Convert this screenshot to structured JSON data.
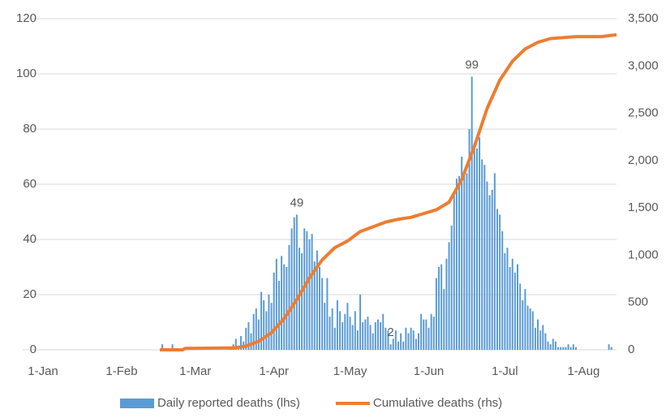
{
  "chart_data": {
    "type": "bar_line",
    "xlim": [
      -8,
      226
    ],
    "xticks": [
      {
        "value": 0,
        "label": "1-Jan"
      },
      {
        "value": 31,
        "label": "1-Feb"
      },
      {
        "value": 60,
        "label": "1-Mar"
      },
      {
        "value": 91,
        "label": "1-Apr"
      },
      {
        "value": 121,
        "label": "1-May"
      },
      {
        "value": 152,
        "label": "1-Jun"
      },
      {
        "value": 182,
        "label": "1-Jul"
      },
      {
        "value": 213,
        "label": "1-Aug"
      }
    ],
    "ylim": [
      0,
      120
    ],
    "yticks": [
      0,
      20,
      40,
      60,
      80,
      100,
      120
    ],
    "y2lim": [
      0,
      3500
    ],
    "y2ticks": [
      0,
      500,
      {
        "value": 1000,
        "label": "1,000"
      },
      {
        "value": 1500,
        "label": "1,500"
      },
      {
        "value": 2000,
        "label": "2,000"
      },
      {
        "value": 2500,
        "label": "2,500"
      },
      {
        "value": 3000,
        "label": "3,000"
      },
      {
        "value": 3500,
        "label": "3,500"
      }
    ],
    "grid": true,
    "legend": "bottom",
    "series": [
      {
        "name": "Daily reported deaths (lhs)",
        "color": "#5b9bd5",
        "kind": "bar",
        "x": [
          46,
          47,
          48,
          49,
          50,
          51,
          52,
          53,
          54,
          55,
          56,
          57,
          58,
          59,
          60,
          61,
          62,
          63,
          64,
          65,
          66,
          67,
          68,
          69,
          70,
          71,
          72,
          73,
          74,
          75,
          76,
          77,
          78,
          79,
          80,
          81,
          82,
          83,
          84,
          85,
          86,
          87,
          88,
          89,
          90,
          91,
          92,
          93,
          94,
          95,
          96,
          97,
          98,
          99,
          100,
          101,
          102,
          103,
          104,
          105,
          106,
          107,
          108,
          109,
          110,
          111,
          112,
          113,
          114,
          115,
          116,
          117,
          118,
          119,
          120,
          121,
          122,
          123,
          124,
          125,
          126,
          127,
          128,
          129,
          130,
          131,
          132,
          133,
          134,
          135,
          136,
          137,
          138,
          139,
          140,
          141,
          142,
          143,
          144,
          145,
          146,
          147,
          148,
          149,
          150,
          151,
          152,
          153,
          154,
          155,
          156,
          157,
          158,
          159,
          160,
          161,
          162,
          163,
          164,
          165,
          166,
          167,
          168,
          169,
          170,
          171,
          172,
          173,
          174,
          175,
          176,
          177,
          178,
          179,
          180,
          181,
          182,
          183,
          184,
          185,
          186,
          187,
          188,
          189,
          190,
          191,
          192,
          193,
          194,
          195,
          196,
          197,
          198,
          199,
          200,
          201,
          202,
          203,
          204,
          205,
          206,
          207,
          208,
          209,
          210,
          211,
          212,
          213,
          214,
          215,
          216,
          217,
          218,
          219,
          220,
          221,
          222,
          223,
          224,
          225,
          226
        ],
        "values": [
          0,
          2,
          0,
          0,
          0,
          2,
          0,
          0,
          0,
          0,
          0,
          0,
          1,
          0,
          0,
          1,
          0,
          0,
          0,
          0,
          0,
          0,
          0,
          0,
          0,
          0,
          0,
          1,
          1,
          2,
          4,
          1,
          5,
          3,
          8,
          10,
          6,
          13,
          15,
          11,
          21,
          18,
          14,
          20,
          17,
          28,
          33,
          25,
          34,
          31,
          30,
          38,
          44,
          48,
          49,
          37,
          35,
          44,
          43,
          40,
          42,
          32,
          36,
          30,
          26,
          17,
          26,
          12,
          15,
          8,
          18,
          14,
          10,
          13,
          17,
          12,
          9,
          14,
          7,
          20,
          10,
          11,
          12,
          9,
          6,
          10,
          11,
          10,
          13,
          8,
          7,
          2,
          4,
          7,
          3,
          6,
          3,
          8,
          6,
          8,
          7,
          4,
          6,
          13,
          11,
          11,
          8,
          13,
          12,
          26,
          30,
          31,
          22,
          33,
          39,
          45,
          57,
          62,
          63,
          70,
          65,
          64,
          80,
          99,
          75,
          73,
          77,
          69,
          67,
          61,
          56,
          58,
          64,
          51,
          49,
          43,
          35,
          37,
          30,
          33,
          28,
          31,
          24,
          18,
          22,
          16,
          15,
          14,
          8,
          11,
          7,
          9,
          6,
          3,
          2,
          4,
          3,
          1,
          1,
          1,
          1,
          2,
          1,
          2,
          1,
          0,
          0,
          0,
          0,
          0,
          0,
          0,
          0,
          0,
          0,
          0,
          0,
          2,
          1,
          0,
          0
        ]
      },
      {
        "name": "Cumulative deaths (rhs)",
        "color": "#ed7d31",
        "kind": "line",
        "axis": "y2",
        "x": [
          46,
          55,
          56,
          75,
          80,
          85,
          90,
          95,
          100,
          105,
          110,
          115,
          120,
          125,
          130,
          135,
          140,
          145,
          150,
          155,
          160,
          165,
          170,
          175,
          180,
          185,
          190,
          195,
          200,
          205,
          210,
          220,
          226
        ],
        "values": [
          0,
          0,
          15,
          20,
          40,
          90,
          180,
          330,
          530,
          760,
          950,
          1080,
          1150,
          1250,
          1300,
          1350,
          1380,
          1400,
          1440,
          1480,
          1560,
          1800,
          2150,
          2550,
          2850,
          3050,
          3180,
          3250,
          3290,
          3300,
          3310,
          3310,
          3330
        ]
      }
    ],
    "annotations": [
      {
        "x": 100,
        "y": 49
      },
      {
        "x": 137,
        "y": 2
      },
      {
        "x": 169,
        "y": 99
      }
    ]
  }
}
